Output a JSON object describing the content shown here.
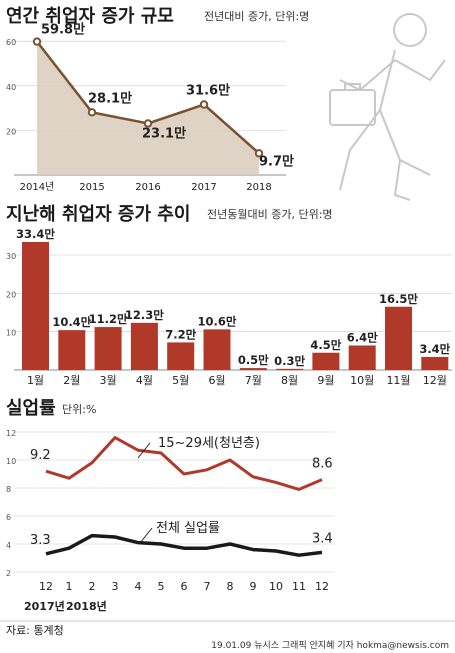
{
  "colors": {
    "accent": "#b0392a",
    "area": "#d9cbbb",
    "area_line": "#7a5230",
    "dark": "#1a1a1a",
    "grid": "#cccccc"
  },
  "chart_data": [
    {
      "type": "area",
      "title": "연간 취업자 증가 규모",
      "subtitle": "전년대비 증가, 단위:명",
      "x": [
        "2014년",
        "2015",
        "2016",
        "2017",
        "2018"
      ],
      "values": [
        59.8,
        28.1,
        23.1,
        31.6,
        9.7
      ],
      "labels": [
        "59.8만",
        "28.1만",
        "23.1만",
        "31.6만",
        "9.7만"
      ],
      "yticks": [
        20,
        40,
        60
      ],
      "ylim": [
        0,
        65
      ],
      "grid": true
    },
    {
      "type": "bar",
      "title": "지난해 취업자 증가 추이",
      "subtitle": "전년동월대비 증가, 단위:명",
      "categories": [
        "1월",
        "2월",
        "3월",
        "4월",
        "5월",
        "6월",
        "7월",
        "8월",
        "9월",
        "10월",
        "11월",
        "12월"
      ],
      "values": [
        33.4,
        10.4,
        11.2,
        12.3,
        7.2,
        10.6,
        0.5,
        0.3,
        4.5,
        6.4,
        16.5,
        3.4
      ],
      "labels": [
        "33.4만",
        "10.4만",
        "11.2만",
        "12.3만",
        "7.2만",
        "10.6만",
        "0.5만",
        "0.3만",
        "4.5만",
        "6.4만",
        "16.5만",
        "3.4만"
      ],
      "yticks": [
        10,
        20,
        30
      ],
      "ylim": [
        0,
        36
      ],
      "grid": true
    },
    {
      "type": "line",
      "title": "실업률",
      "subtitle": "단위:%",
      "x": [
        "12",
        "1",
        "2",
        "3",
        "4",
        "5",
        "6",
        "7",
        "8",
        "9",
        "10",
        "11",
        "12"
      ],
      "year_labels": [
        "2017년",
        "2018년"
      ],
      "yticks": [
        2,
        4,
        6,
        8,
        10,
        12
      ],
      "ylim": [
        2,
        12
      ],
      "grid": true,
      "series": [
        {
          "name": "15~29세(청년층)",
          "values": [
            9.2,
            8.7,
            9.8,
            11.6,
            10.7,
            10.5,
            9.0,
            9.3,
            10.0,
            8.8,
            8.4,
            7.9,
            8.6
          ],
          "start_label": "9.2",
          "end_label": "8.6"
        },
        {
          "name": "전체 실업률",
          "values": [
            3.3,
            3.7,
            4.6,
            4.5,
            4.1,
            4.0,
            3.7,
            3.7,
            4.0,
            3.6,
            3.5,
            3.2,
            3.4
          ],
          "start_label": "3.3",
          "end_label": "3.4"
        }
      ]
    }
  ],
  "footer": {
    "source": "자료: 통계청",
    "credit": "19.01.09 뉴시스 그래픽 안지혜 기자 hokma@newsis.com"
  }
}
